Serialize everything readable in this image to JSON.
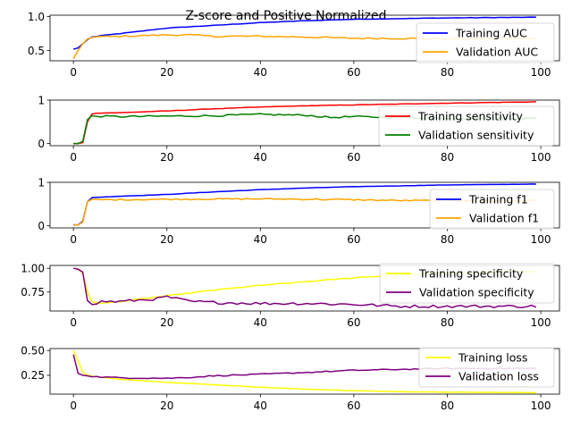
{
  "chart_data": {
    "title": "Z-score and Positive Normalized",
    "type": "line",
    "epochs": 100,
    "subplots": [
      {
        "id": "auc",
        "ylim": [
          0.35,
          1.02
        ],
        "yticks": [
          0.5,
          1.0
        ],
        "ytick_labels": [
          "0.5",
          "1.0"
        ],
        "legend_loc": "lower-right",
        "series": [
          {
            "name": "Training AUC",
            "color": "#0000ff",
            "anchors": [
              [
                0,
                0.52
              ],
              [
                1,
                0.54
              ],
              [
                2,
                0.6
              ],
              [
                3,
                0.66
              ],
              [
                4,
                0.7
              ],
              [
                6,
                0.72
              ],
              [
                10,
                0.75
              ],
              [
                20,
                0.83
              ],
              [
                30,
                0.87
              ],
              [
                40,
                0.91
              ],
              [
                50,
                0.94
              ],
              [
                60,
                0.96
              ],
              [
                80,
                0.98
              ],
              [
                99,
                0.99
              ]
            ],
            "noise": 0.003
          },
          {
            "name": "Validation AUC",
            "color": "#ffa500",
            "anchors": [
              [
                0,
                0.38
              ],
              [
                1,
                0.5
              ],
              [
                2,
                0.6
              ],
              [
                3,
                0.67
              ],
              [
                4,
                0.7
              ],
              [
                10,
                0.71
              ],
              [
                20,
                0.73
              ],
              [
                25,
                0.73
              ],
              [
                30,
                0.71
              ],
              [
                40,
                0.71
              ],
              [
                50,
                0.7
              ],
              [
                60,
                0.68
              ],
              [
                70,
                0.68
              ],
              [
                80,
                0.67
              ],
              [
                99,
                0.68
              ]
            ],
            "noise": 0.012
          }
        ]
      },
      {
        "id": "sensitivity",
        "ylim": [
          -0.05,
          1.0
        ],
        "yticks": [
          0,
          1
        ],
        "ytick_labels": [
          "0",
          "1"
        ],
        "legend_loc": "lower-right",
        "series": [
          {
            "name": "Training sensitivity",
            "color": "#ff0000",
            "anchors": [
              [
                0,
                0.0
              ],
              [
                1,
                0.0
              ],
              [
                2,
                0.02
              ],
              [
                3,
                0.5
              ],
              [
                4,
                0.68
              ],
              [
                5,
                0.7
              ],
              [
                10,
                0.71
              ],
              [
                20,
                0.75
              ],
              [
                30,
                0.8
              ],
              [
                40,
                0.84
              ],
              [
                50,
                0.87
              ],
              [
                60,
                0.89
              ],
              [
                80,
                0.93
              ],
              [
                99,
                0.96
              ]
            ],
            "noise": 0.004
          },
          {
            "name": "Validation sensitivity",
            "color": "#008000",
            "anchors": [
              [
                0,
                0.0
              ],
              [
                1,
                0.0
              ],
              [
                2,
                0.05
              ],
              [
                3,
                0.55
              ],
              [
                4,
                0.63
              ],
              [
                10,
                0.62
              ],
              [
                20,
                0.63
              ],
              [
                30,
                0.64
              ],
              [
                40,
                0.67
              ],
              [
                50,
                0.65
              ],
              [
                55,
                0.6
              ],
              [
                60,
                0.62
              ],
              [
                70,
                0.6
              ],
              [
                80,
                0.58
              ],
              [
                99,
                0.58
              ]
            ],
            "noise": 0.02
          }
        ]
      },
      {
        "id": "f1",
        "ylim": [
          -0.05,
          1.0
        ],
        "yticks": [
          0,
          1
        ],
        "ytick_labels": [
          "0",
          "1"
        ],
        "legend_loc": "lower-right",
        "series": [
          {
            "name": "Training f1",
            "color": "#0000ff",
            "anchors": [
              [
                0,
                0.02
              ],
              [
                1,
                0.02
              ],
              [
                2,
                0.1
              ],
              [
                3,
                0.55
              ],
              [
                4,
                0.65
              ],
              [
                10,
                0.68
              ],
              [
                20,
                0.72
              ],
              [
                30,
                0.78
              ],
              [
                40,
                0.83
              ],
              [
                50,
                0.87
              ],
              [
                60,
                0.9
              ],
              [
                80,
                0.94
              ],
              [
                99,
                0.96
              ]
            ],
            "noise": 0.003
          },
          {
            "name": "Validation f1",
            "color": "#ffa500",
            "anchors": [
              [
                0,
                0.02
              ],
              [
                1,
                0.02
              ],
              [
                2,
                0.08
              ],
              [
                3,
                0.55
              ],
              [
                4,
                0.6
              ],
              [
                10,
                0.6
              ],
              [
                20,
                0.61
              ],
              [
                40,
                0.62
              ],
              [
                50,
                0.61
              ],
              [
                60,
                0.6
              ],
              [
                70,
                0.58
              ],
              [
                80,
                0.58
              ],
              [
                99,
                0.58
              ]
            ],
            "noise": 0.015
          }
        ]
      },
      {
        "id": "specificity",
        "ylim": [
          0.55,
          1.03
        ],
        "yticks": [
          0.75,
          1.0
        ],
        "ytick_labels": [
          "0.75",
          "1.00"
        ],
        "legend_loc": "upper-right",
        "series": [
          {
            "name": "Training specificity",
            "color": "#ffff00",
            "anchors": [
              [
                0,
                1.0
              ],
              [
                1,
                0.99
              ],
              [
                2,
                0.95
              ],
              [
                3,
                0.75
              ],
              [
                4,
                0.65
              ],
              [
                6,
                0.63
              ],
              [
                10,
                0.65
              ],
              [
                20,
                0.71
              ],
              [
                30,
                0.77
              ],
              [
                40,
                0.82
              ],
              [
                50,
                0.86
              ],
              [
                60,
                0.9
              ],
              [
                70,
                0.93
              ],
              [
                80,
                0.95
              ],
              [
                99,
                0.97
              ]
            ],
            "noise": 0.004
          },
          {
            "name": "Validation specificity",
            "color": "#800080",
            "anchors": [
              [
                0,
                1.0
              ],
              [
                1,
                0.99
              ],
              [
                2,
                0.96
              ],
              [
                3,
                0.66
              ],
              [
                4,
                0.61
              ],
              [
                6,
                0.65
              ],
              [
                10,
                0.65
              ],
              [
                18,
                0.68
              ],
              [
                20,
                0.7
              ],
              [
                25,
                0.65
              ],
              [
                30,
                0.64
              ],
              [
                40,
                0.63
              ],
              [
                50,
                0.63
              ],
              [
                60,
                0.62
              ],
              [
                70,
                0.6
              ],
              [
                80,
                0.6
              ],
              [
                99,
                0.6
              ]
            ],
            "noise": 0.015
          }
        ]
      },
      {
        "id": "loss",
        "ylim": [
          0.06,
          0.52
        ],
        "yticks": [
          0.25,
          0.5
        ],
        "ytick_labels": [
          "0.25",
          "0.50"
        ],
        "legend_loc": "upper-right",
        "series": [
          {
            "name": "Training loss",
            "color": "#ffff00",
            "anchors": [
              [
                0,
                0.5
              ],
              [
                1,
                0.4
              ],
              [
                2,
                0.28
              ],
              [
                3,
                0.25
              ],
              [
                5,
                0.235
              ],
              [
                10,
                0.21
              ],
              [
                20,
                0.18
              ],
              [
                30,
                0.155
              ],
              [
                40,
                0.13
              ],
              [
                50,
                0.11
              ],
              [
                60,
                0.095
              ],
              [
                70,
                0.085
              ],
              [
                80,
                0.08
              ],
              [
                99,
                0.075
              ]
            ],
            "noise": 0.001
          },
          {
            "name": "Validation loss",
            "color": "#800080",
            "anchors": [
              [
                0,
                0.46
              ],
              [
                1,
                0.27
              ],
              [
                2,
                0.25
              ],
              [
                5,
                0.235
              ],
              [
                10,
                0.225
              ],
              [
                20,
                0.22
              ],
              [
                25,
                0.23
              ],
              [
                30,
                0.245
              ],
              [
                40,
                0.26
              ],
              [
                50,
                0.28
              ],
              [
                60,
                0.3
              ],
              [
                70,
                0.31
              ],
              [
                80,
                0.32
              ],
              [
                99,
                0.32
              ]
            ],
            "noise": 0.006
          }
        ]
      }
    ],
    "xticks": [
      0,
      20,
      40,
      60,
      80,
      100
    ],
    "xlim": [
      -5,
      104
    ]
  }
}
